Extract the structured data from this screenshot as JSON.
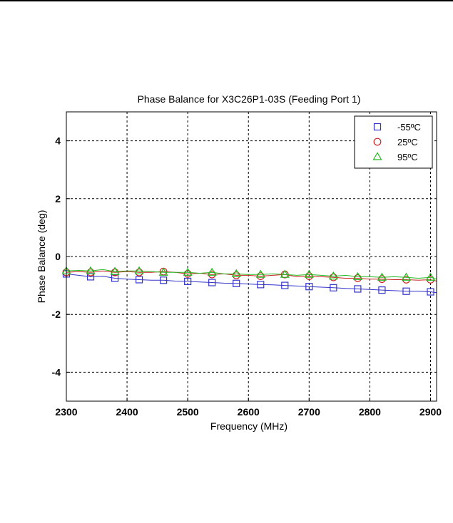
{
  "chart_data": {
    "type": "line",
    "title": "Phase Balance for X3C26P1-03S (Feeding Port 1)",
    "xlabel": "Frequency (MHz)",
    "ylabel": "Phase Balance (deg)",
    "xlim": [
      2300,
      2910
    ],
    "ylim": [
      -5,
      5
    ],
    "xticks": [
      2300,
      2400,
      2500,
      2600,
      2700,
      2800,
      2900
    ],
    "yticks": [
      -4,
      -2,
      0,
      2,
      4
    ],
    "grid": true,
    "legend_position": "top-right",
    "series": [
      {
        "name": "-55ºC",
        "color": "#3333cc",
        "marker": "square",
        "x": [
          2300,
          2320,
          2340,
          2360,
          2380,
          2400,
          2420,
          2440,
          2460,
          2480,
          2500,
          2520,
          2540,
          2560,
          2580,
          2600,
          2620,
          2640,
          2660,
          2680,
          2700,
          2720,
          2740,
          2760,
          2780,
          2800,
          2820,
          2840,
          2860,
          2880,
          2900,
          2910
        ],
        "y": [
          -0.6,
          -0.65,
          -0.7,
          -0.68,
          -0.75,
          -0.78,
          -0.8,
          -0.82,
          -0.82,
          -0.85,
          -0.86,
          -0.88,
          -0.9,
          -0.92,
          -0.93,
          -0.95,
          -0.97,
          -0.98,
          -1.0,
          -1.02,
          -1.04,
          -1.06,
          -1.08,
          -1.1,
          -1.12,
          -1.14,
          -1.16,
          -1.18,
          -1.2,
          -1.2,
          -1.22,
          -1.25
        ]
      },
      {
        "name": "25ºC",
        "color": "#cc2222",
        "marker": "circle",
        "x": [
          2300,
          2320,
          2340,
          2360,
          2380,
          2400,
          2420,
          2440,
          2460,
          2480,
          2500,
          2520,
          2540,
          2560,
          2580,
          2600,
          2620,
          2640,
          2660,
          2680,
          2700,
          2720,
          2740,
          2760,
          2780,
          2800,
          2820,
          2840,
          2860,
          2880,
          2900,
          2910
        ],
        "y": [
          -0.55,
          -0.52,
          -0.55,
          -0.5,
          -0.55,
          -0.52,
          -0.55,
          -0.55,
          -0.52,
          -0.55,
          -0.6,
          -0.58,
          -0.62,
          -0.6,
          -0.65,
          -0.65,
          -0.68,
          -0.65,
          -0.62,
          -0.7,
          -0.68,
          -0.7,
          -0.72,
          -0.75,
          -0.75,
          -0.78,
          -0.78,
          -0.8,
          -0.8,
          -0.82,
          -0.8,
          -0.85
        ]
      },
      {
        "name": "95ºC",
        "color": "#22bb22",
        "marker": "triangle",
        "x": [
          2300,
          2320,
          2340,
          2360,
          2380,
          2400,
          2420,
          2440,
          2460,
          2480,
          2500,
          2520,
          2540,
          2560,
          2580,
          2600,
          2620,
          2640,
          2660,
          2680,
          2700,
          2720,
          2740,
          2760,
          2780,
          2800,
          2820,
          2840,
          2860,
          2880,
          2900,
          2910
        ],
        "y": [
          -0.5,
          -0.48,
          -0.5,
          -0.45,
          -0.52,
          -0.5,
          -0.5,
          -0.52,
          -0.55,
          -0.55,
          -0.55,
          -0.58,
          -0.55,
          -0.6,
          -0.6,
          -0.62,
          -0.62,
          -0.6,
          -0.62,
          -0.65,
          -0.62,
          -0.65,
          -0.68,
          -0.65,
          -0.7,
          -0.7,
          -0.72,
          -0.7,
          -0.72,
          -0.75,
          -0.72,
          -0.78
        ]
      }
    ]
  }
}
